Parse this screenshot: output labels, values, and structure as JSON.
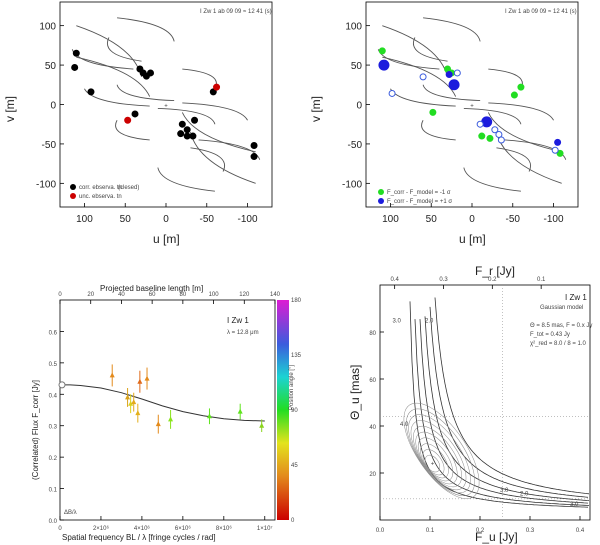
{
  "figure": {
    "object": "I Zw 1"
  },
  "chart_data": [
    {
      "id": "uv-left",
      "type": "scatter",
      "annotation": "I Zw 1 ab 09 09 ≈ 12 41 (s)",
      "xlabel": "u [m]",
      "ylabel": "v [m]",
      "xlim": [
        130,
        -130
      ],
      "ylim": [
        -130,
        130
      ],
      "xticks": [
        100,
        50,
        0,
        -50,
        -100
      ],
      "xtick_labels": [
        "100",
        "50",
        "0",
        "-50",
        "-100"
      ],
      "yticks": [
        -100,
        -50,
        0,
        50,
        100
      ],
      "ytick_labels": [
        "-100",
        "-50",
        "0",
        "50",
        "100"
      ],
      "tracks": [
        {
          "start": [
            115,
            70
          ],
          "end": [
            40,
            45
          ],
          "type": "arc"
        },
        {
          "start": [
            70,
            85
          ],
          "end": [
            30,
            55
          ],
          "type": "arc"
        },
        {
          "start": [
            100,
            20
          ],
          "end": [
            20,
            -2
          ],
          "type": "arc"
        },
        {
          "start": [
            60,
            25
          ],
          "end": [
            -10,
            5
          ],
          "type": "arc"
        },
        {
          "start": [
            60,
            -20
          ],
          "end": [
            20,
            -45
          ],
          "type": "arc"
        },
        {
          "start": [
            -20,
            -10
          ],
          "end": [
            -110,
            -60
          ],
          "type": "arc"
        },
        {
          "start": [
            -30,
            -35
          ],
          "end": [
            -110,
            -100
          ],
          "type": "arc"
        },
        {
          "start": [
            10,
            -80
          ],
          "end": [
            -60,
            -110
          ],
          "type": "arc"
        }
      ],
      "center_marker": {
        "x": 0,
        "y": 0
      },
      "series": [
        {
          "name": "correlated flux (closed)",
          "legend_label": "corr. ebserva. tn",
          "legend_suffix": "(clesed)",
          "color": "#000000",
          "points": [
            [
              110,
              65
            ],
            [
              112,
              47
            ],
            [
              92,
              16
            ],
            [
              32,
              45
            ],
            [
              28,
              40
            ],
            [
              24,
              36
            ],
            [
              19,
              40
            ],
            [
              -58,
              16
            ],
            [
              -35,
              -20
            ],
            [
              -20,
              -25
            ],
            [
              -26,
              -32
            ],
            [
              -18,
              -37
            ],
            [
              -26,
              -40
            ],
            [
              -33,
              -40
            ],
            [
              -108,
              -52
            ],
            [
              -108,
              -66
            ],
            [
              38,
              -12
            ]
          ]
        },
        {
          "name": "uncorrelated flux",
          "legend_label": "unc. ebserva. tn",
          "color": "#cc0000",
          "points": [
            [
              -62,
              22
            ],
            [
              47,
              -20
            ]
          ]
        }
      ]
    },
    {
      "id": "uv-right",
      "type": "scatter",
      "annotation": "I Zw 1 ab 09 09 ≈ 12 41 (s)",
      "xlabel": "u [m]",
      "ylabel": "v [m]",
      "xlim": [
        130,
        -130
      ],
      "ylim": [
        -130,
        130
      ],
      "xticks": [
        100,
        50,
        0,
        -50,
        -100
      ],
      "xtick_labels": [
        "100",
        "50",
        "0",
        "-50",
        "-100"
      ],
      "yticks": [
        -100,
        -50,
        0,
        50,
        100
      ],
      "ytick_labels": [
        "-100",
        "-50",
        "0",
        "50",
        "100"
      ],
      "series": [
        {
          "name": "model residual low",
          "legend_label": "F_corr - F_model = -1 σ",
          "color": "#22dd22",
          "points": [
            [
              110,
              68
            ],
            [
              30,
              45
            ],
            [
              25,
              40
            ],
            [
              -52,
              12
            ],
            [
              -60,
              22
            ],
            [
              48,
              -10
            ],
            [
              -22,
              -43
            ],
            [
              -12,
              -40
            ],
            [
              -108,
              -62
            ]
          ]
        },
        {
          "name": "model residual high",
          "legend_label": "F_corr - F_model = +1 σ",
          "color": "#1c1cdd",
          "points": [
            [
              108,
              50
            ],
            [
              22,
              25
            ],
            [
              -18,
              -22
            ],
            [
              -105,
              -48
            ],
            [
              28,
              38
            ]
          ]
        },
        {
          "name": "open markers",
          "legend_label": "",
          "color": "#3b5cdd",
          "open": true,
          "points": [
            [
              98,
              14
            ],
            [
              60,
              35
            ],
            [
              18,
              40
            ],
            [
              -10,
              -25
            ],
            [
              -28,
              -32
            ],
            [
              -33,
              -38
            ],
            [
              -36,
              -45
            ],
            [
              -102,
              -58
            ]
          ]
        }
      ]
    },
    {
      "id": "visibility",
      "type": "scatter",
      "title": "I Zw 1",
      "subtitle": "λ = 12.8 μm",
      "xlabel": "Spatial frequency BL / λ [fringe cycles / rad]",
      "ylabel": "(Correlated) Flux F_corr [Jy]",
      "x2label": "Projected baseline length [m]",
      "xlim": [
        0,
        10500000
      ],
      "ylim": [
        0,
        0.7
      ],
      "xticks": [
        0,
        2000000,
        4000000,
        6000000,
        8000000,
        10000000
      ],
      "xtick_labels": [
        "0",
        "2×10⁶",
        "4×10⁶",
        "6×10⁶",
        "8×10⁶",
        "1×10⁷"
      ],
      "yticks": [
        0,
        0.1,
        0.2,
        0.3,
        0.4,
        0.5,
        0.6
      ],
      "ytick_labels": [
        "0.0",
        "0.1",
        "0.2",
        "0.3",
        "0.4",
        "0.5",
        "0.6"
      ],
      "x2ticks": [
        0,
        20,
        40,
        60,
        80,
        100,
        120,
        140
      ],
      "x2tick_labels": [
        "0",
        "20",
        "40",
        "60",
        "80",
        "100",
        "120",
        "140"
      ],
      "colorbar_label": "Position angle [°]",
      "colorbar_ticks": [
        0,
        45,
        90,
        135,
        180
      ],
      "colorbar_tick_labels": [
        "0",
        "45",
        "90",
        "135",
        "180"
      ],
      "corner_note": "ΔB/λ",
      "total_flux_marker": {
        "x": 0,
        "y": 0.43
      },
      "model_curve": {
        "x": [
          0,
          500000,
          1000000,
          2000000,
          3000000,
          4000000,
          5000000,
          6000000,
          7000000,
          8000000,
          9000000,
          10000000
        ],
        "y": [
          0.43,
          0.43,
          0.428,
          0.42,
          0.405,
          0.385,
          0.363,
          0.345,
          0.332,
          0.322,
          0.317,
          0.315
        ]
      },
      "data_points": [
        {
          "x": 2550000,
          "y": 0.46,
          "err": 0.035,
          "color": "#e38a1c"
        },
        {
          "x": 3300000,
          "y": 0.39,
          "err": 0.03,
          "color": "#d9a21b"
        },
        {
          "x": 3450000,
          "y": 0.37,
          "err": 0.03,
          "color": "#d8d21c"
        },
        {
          "x": 3600000,
          "y": 0.375,
          "err": 0.03,
          "color": "#e3a81c"
        },
        {
          "x": 3800000,
          "y": 0.34,
          "err": 0.03,
          "color": "#e3b01c"
        },
        {
          "x": 3900000,
          "y": 0.44,
          "err": 0.035,
          "color": "#e06a1a"
        },
        {
          "x": 4250000,
          "y": 0.45,
          "err": 0.035,
          "color": "#e38a1c"
        },
        {
          "x": 4800000,
          "y": 0.305,
          "err": 0.03,
          "color": "#e38a1c"
        },
        {
          "x": 5400000,
          "y": 0.32,
          "err": 0.03,
          "color": "#8ae31c"
        },
        {
          "x": 7300000,
          "y": 0.33,
          "err": 0.025,
          "color": "#5ee31c"
        },
        {
          "x": 8800000,
          "y": 0.345,
          "err": 0.025,
          "color": "#5ee31c"
        },
        {
          "x": 9850000,
          "y": 0.3,
          "err": 0.02,
          "color": "#8ad31c"
        }
      ]
    },
    {
      "id": "chi2-map",
      "type": "heatmap",
      "title": "I Zw 1",
      "subtitle": "Gaussian model",
      "annotation_lines": [
        "Θ = 8.5 mas, F = 0.x Jy",
        "F_tot = 0.43 Jy",
        "χ²_red = 8.0 / 8 = 1.0"
      ],
      "xlabel": "F_u [Jy]",
      "ylabel": "Θ_u [mas]",
      "x2label": "F_r [Jy]",
      "xlim": [
        0,
        0.42
      ],
      "ylim": [
        0,
        100
      ],
      "xticks": [
        0,
        0.1,
        0.2,
        0.3,
        0.4
      ],
      "xtick_labels": [
        "0.0",
        "0.1",
        "0.2",
        "0.3",
        "0.4"
      ],
      "yticks": [
        20,
        40,
        60,
        80
      ],
      "ytick_labels": [
        "20",
        "40",
        "60",
        "80"
      ],
      "x2ticks": [
        0.4,
        0.3,
        0.2,
        0.1
      ],
      "x2tick_labels": [
        "0.4",
        "0.3",
        "0.2",
        "0.1"
      ],
      "reference_lines": {
        "x": 0.245,
        "y": [
          44,
          9
        ]
      },
      "best_fit": {
        "x": 0.105,
        "y": 24
      },
      "contour_labels": [
        "3.0",
        "2.0",
        "4.0",
        "3.0",
        "2.0",
        "3.0"
      ]
    }
  ]
}
